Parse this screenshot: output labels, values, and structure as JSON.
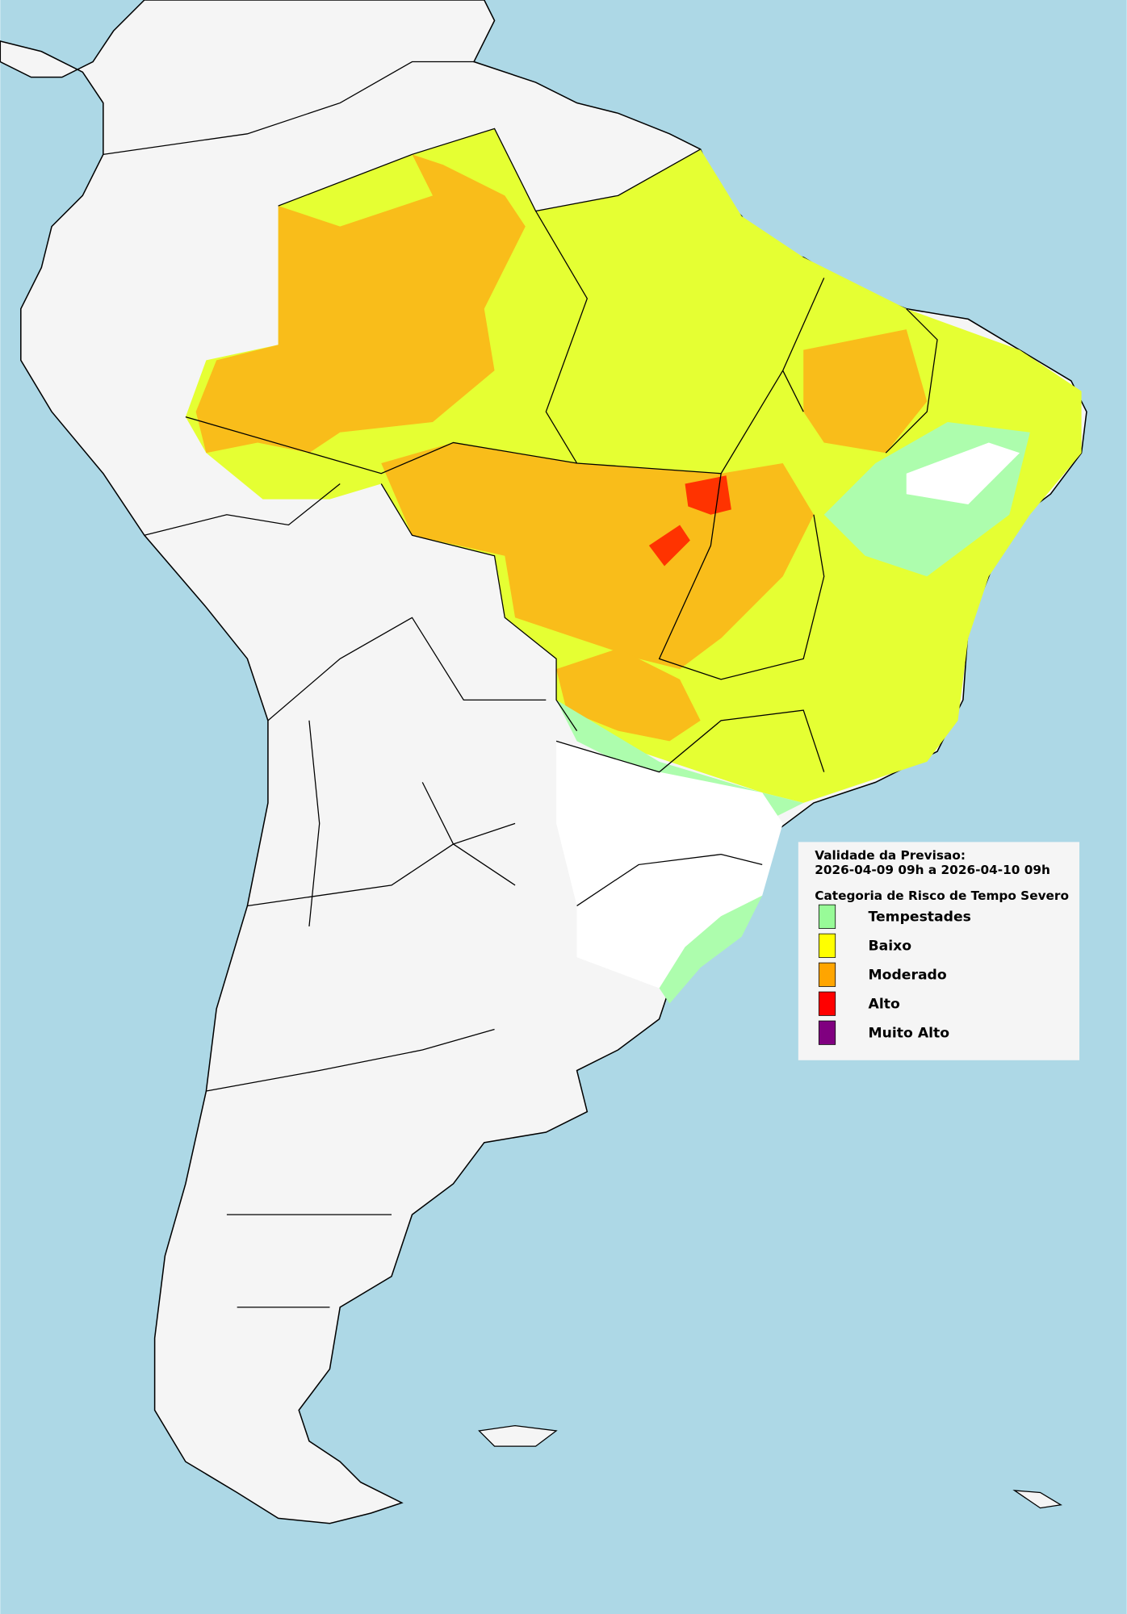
{
  "legend": {
    "validity_label": "Validade da Previsao:",
    "validity_period": "2026-04-09 09h a 2026-04-10 09h",
    "title": "Categoria de Risco de Tempo Severo",
    "items": [
      {
        "label": "Tempestades",
        "color": "#98fb98"
      },
      {
        "label": "Baixo",
        "color": "#ffff00"
      },
      {
        "label": "Moderado",
        "color": "#ffa500"
      },
      {
        "label": "Alto",
        "color": "#ff0000"
      },
      {
        "label": "Muito Alto",
        "color": "#800080"
      }
    ]
  }
}
